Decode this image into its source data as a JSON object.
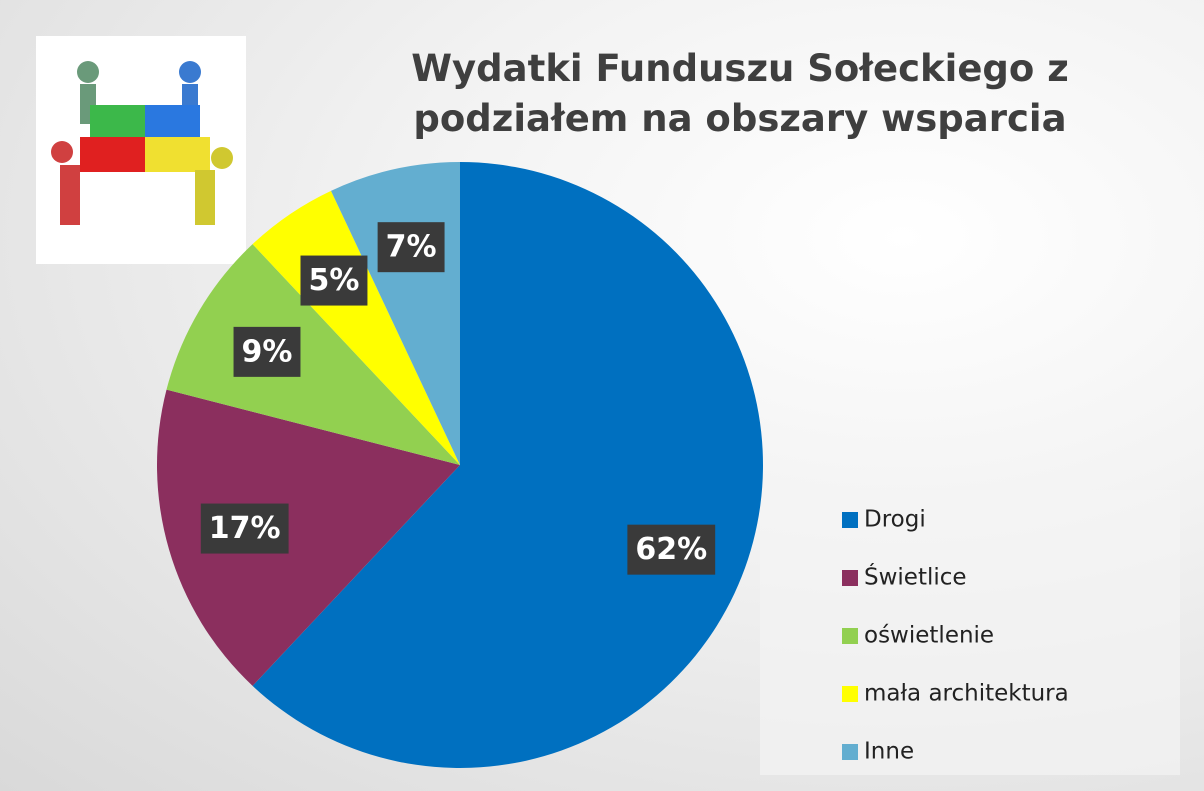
{
  "chart_data": {
    "type": "pie",
    "title": "Wydatki Funduszu Sołeckiego z podziałem na obszary wsparcia",
    "categories": [
      "Drogi",
      "Świetlice",
      "oświetlenie",
      "mała architektura",
      "Inne"
    ],
    "values": [
      62,
      17,
      9,
      5,
      7
    ],
    "value_labels": [
      "62%",
      "17%",
      "9%",
      "5%",
      "7%"
    ],
    "colors": [
      "#0070c0",
      "#8b2f5e",
      "#92d050",
      "#ffff00",
      "#63aed0"
    ],
    "legend": "right"
  }
}
